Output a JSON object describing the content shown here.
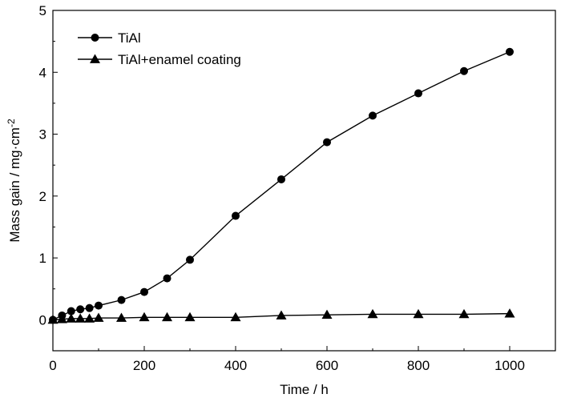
{
  "chart_data": {
    "type": "line",
    "xlabel": "Time / h",
    "ylabel": "Mass gain / mg·cm",
    "ylabel_superscript": "-2",
    "xlim": [
      0,
      1100
    ],
    "ylim": [
      -0.5,
      5
    ],
    "xticks": [
      0,
      200,
      400,
      600,
      800,
      1000
    ],
    "yticks": [
      0,
      1,
      2,
      3,
      4,
      5
    ],
    "xtick_labels": [
      "0",
      "200",
      "400",
      "600",
      "800",
      "1000"
    ],
    "ytick_labels": [
      "0",
      "1",
      "2",
      "3",
      "4",
      "5"
    ],
    "grid": false,
    "legend_position": "top-left",
    "series": [
      {
        "name": "TiAl",
        "marker": "circle",
        "color": "#000000",
        "x": [
          0,
          20,
          40,
          60,
          80,
          100,
          150,
          200,
          250,
          300,
          400,
          500,
          600,
          700,
          800,
          900,
          1000
        ],
        "y": [
          0.0,
          0.07,
          0.14,
          0.17,
          0.19,
          0.23,
          0.32,
          0.45,
          0.67,
          0.97,
          1.68,
          2.27,
          2.87,
          3.3,
          3.66,
          4.02,
          4.33
        ]
      },
      {
        "name": "TiAl+enamel coating",
        "marker": "triangle",
        "color": "#000000",
        "x": [
          0,
          20,
          40,
          60,
          80,
          100,
          150,
          200,
          250,
          300,
          400,
          500,
          600,
          700,
          800,
          900,
          1000
        ],
        "y": [
          0.0,
          0.01,
          0.02,
          0.02,
          0.02,
          0.03,
          0.03,
          0.04,
          0.04,
          0.04,
          0.04,
          0.07,
          0.08,
          0.09,
          0.09,
          0.09,
          0.1
        ]
      }
    ]
  }
}
